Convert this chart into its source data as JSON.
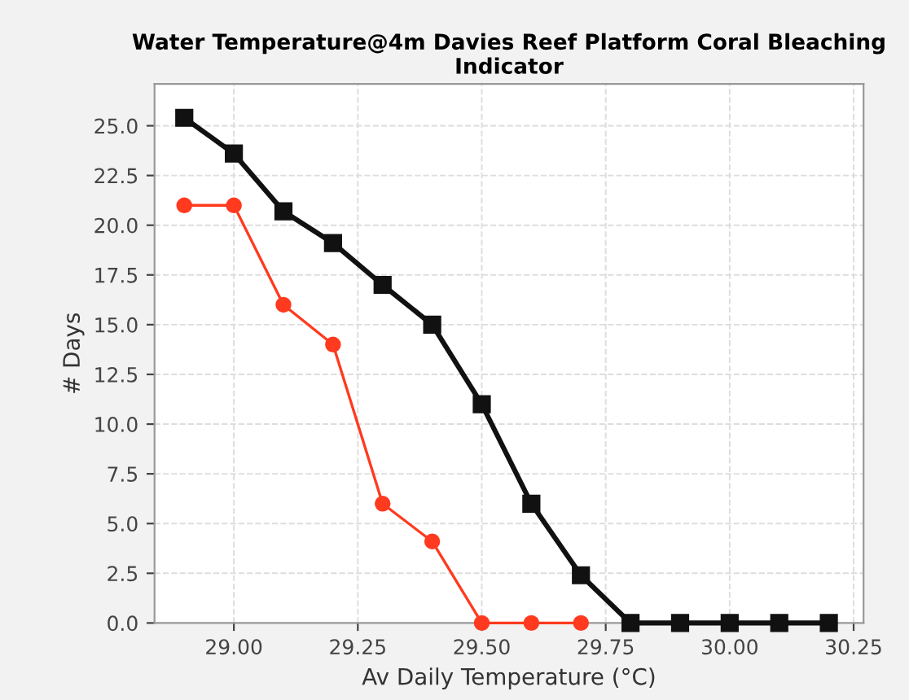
{
  "chart_data": {
    "type": "line",
    "title": "Water Temperature@4m Davies Reef Platform Coral Bleaching Indicator",
    "xlabel": "Av Daily Temperature (°C)",
    "ylabel": "# Days",
    "x": [
      28.9,
      29.0,
      29.1,
      29.2,
      29.3,
      29.4,
      29.5,
      29.6,
      29.7,
      29.8,
      29.9,
      30.0,
      30.1,
      30.2
    ],
    "series": [
      {
        "color": "#111111",
        "marker": "square",
        "values": [
          25.4,
          23.6,
          20.7,
          19.1,
          17.0,
          15.0,
          11.0,
          6.0,
          2.4,
          0,
          0,
          0,
          0,
          0
        ]
      },
      {
        "color": "#ff3a1f",
        "marker": "circle",
        "values": [
          21.0,
          21.0,
          16.0,
          14.0,
          6.0,
          4.1,
          0,
          0,
          0,
          null,
          null,
          null,
          null,
          null
        ]
      }
    ],
    "xlim": [
      28.84,
      30.27
    ],
    "ylim": [
      0,
      27.1
    ],
    "xticks": [
      {
        "value": 29.0,
        "label": "29.00"
      },
      {
        "value": 29.25,
        "label": "29.25"
      },
      {
        "value": 29.5,
        "label": "29.50"
      },
      {
        "value": 29.75,
        "label": "29.75"
      },
      {
        "value": 30.0,
        "label": "30.00"
      },
      {
        "value": 30.25,
        "label": "30.25"
      }
    ],
    "yticks": [
      {
        "value": 0,
        "label": "0.0"
      },
      {
        "value": 2.5,
        "label": "2.5"
      },
      {
        "value": 5,
        "label": "5.0"
      },
      {
        "value": 7.5,
        "label": "7.5"
      },
      {
        "value": 10,
        "label": "10.0"
      },
      {
        "value": 12.5,
        "label": "12.5"
      },
      {
        "value": 15,
        "label": "15.0"
      },
      {
        "value": 17.5,
        "label": "17.5"
      },
      {
        "value": 20,
        "label": "20.0"
      },
      {
        "value": 22.5,
        "label": "22.5"
      },
      {
        "value": 25,
        "label": "25.0"
      }
    ],
    "grid": true
  }
}
